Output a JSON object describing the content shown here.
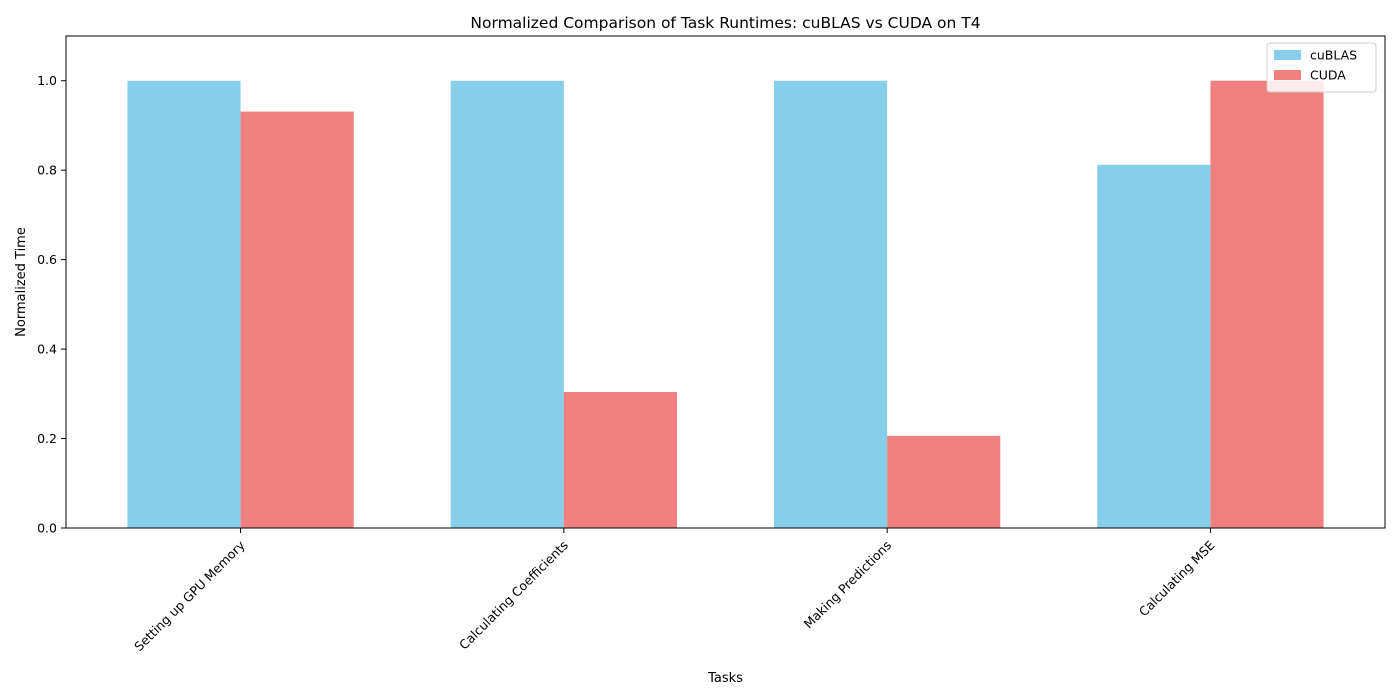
{
  "chart_data": {
    "type": "bar",
    "title": "Normalized Comparison of Task Runtimes: cuBLAS vs CUDA on T4",
    "xlabel": "Tasks",
    "ylabel": "Normalized Time",
    "categories": [
      "Setting up GPU Memory",
      "Calculating Coefficients",
      "Making Predictions",
      "Calculating MSE"
    ],
    "series": [
      {
        "name": "cuBLAS",
        "color": "#87ceeb",
        "values": [
          1.0,
          1.0,
          1.0,
          0.812
        ]
      },
      {
        "name": "CUDA",
        "color": "#f08080",
        "values": [
          0.931,
          0.304,
          0.206,
          1.0
        ]
      }
    ],
    "ylim": [
      0,
      1.1
    ],
    "yticks": [
      0.0,
      0.2,
      0.4,
      0.6,
      0.8,
      1.0
    ],
    "grid": false,
    "legend": "top-right"
  }
}
